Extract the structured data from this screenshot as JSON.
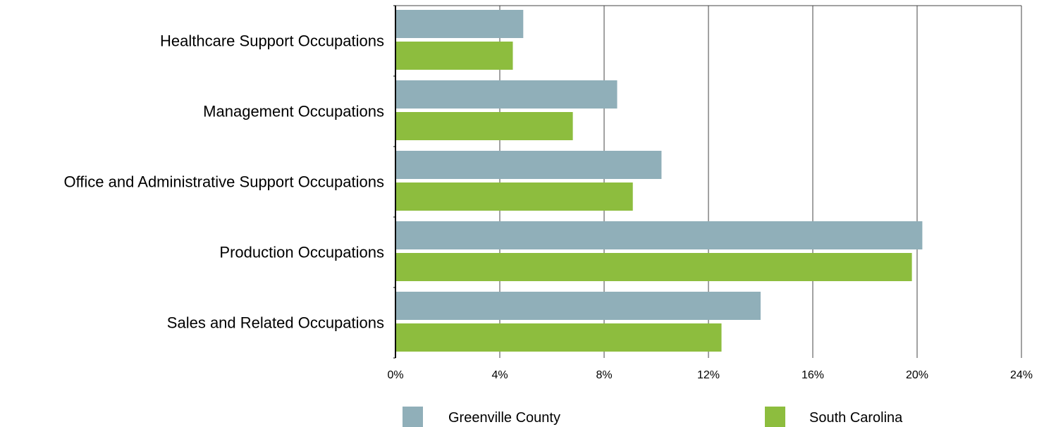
{
  "chart_data": {
    "type": "bar",
    "orientation": "horizontal",
    "categories": [
      "Healthcare Support Occupations",
      "Management Occupations",
      "Office and Administrative Support Occupations",
      "Production Occupations",
      "Sales and Related Occupations"
    ],
    "series": [
      {
        "name": "Greenville County",
        "color": "#90AFB9",
        "values": [
          4.9,
          8.5,
          10.2,
          20.2,
          14.0
        ]
      },
      {
        "name": "South Carolina",
        "color": "#8DBD3E",
        "values": [
          4.5,
          6.8,
          9.1,
          19.8,
          12.5
        ]
      }
    ],
    "xlim": [
      0,
      24
    ],
    "xticks": [
      0,
      4,
      8,
      12,
      16,
      20,
      24
    ],
    "tick_labels": [
      "0%",
      "4%",
      "8%",
      "12%",
      "16%",
      "20%",
      "24%"
    ],
    "grid": "vertical",
    "legend_position": "bottom"
  }
}
